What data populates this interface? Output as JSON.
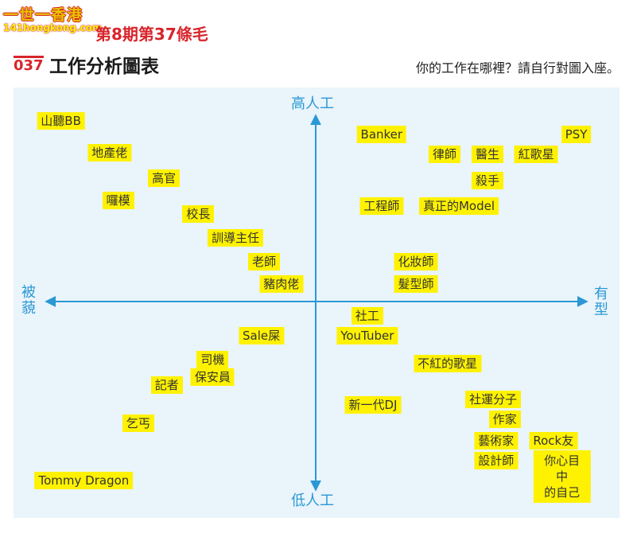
{
  "watermark": {
    "top": "一世一香港",
    "url": "141hongkong.com"
  },
  "issue": "第8期第37條毛",
  "header": {
    "number": "037",
    "title": "工作分析圖表",
    "subtitle": "你的工作在哪裡？請自行對圖入座。"
  },
  "chart_data": {
    "type": "scatter",
    "x_axis": {
      "left_label": "被\n藐",
      "right_label": "有\n型"
    },
    "y_axis": {
      "top_label": "高人工",
      "bottom_label": "低人工"
    },
    "xlim": [
      -1,
      1
    ],
    "ylim": [
      -1,
      1
    ],
    "grid": false,
    "colors": {
      "axis": "#2a98d4",
      "chip": "#fff200",
      "panel": "#eaf4fb"
    },
    "points": [
      {
        "label": "山聽BB",
        "x": -0.89,
        "y": 0.91
      },
      {
        "label": "地產佬",
        "x": -0.72,
        "y": 0.75
      },
      {
        "label": "高官",
        "x": -0.53,
        "y": 0.62
      },
      {
        "label": "囉模",
        "x": -0.69,
        "y": 0.51
      },
      {
        "label": "校長",
        "x": -0.41,
        "y": 0.44
      },
      {
        "label": "訓導主任",
        "x": -0.28,
        "y": 0.32
      },
      {
        "label": "老師",
        "x": -0.18,
        "y": 0.2
      },
      {
        "label": "豬肉佬",
        "x": -0.12,
        "y": 0.09
      },
      {
        "label": "Banker",
        "x": 0.23,
        "y": 0.84
      },
      {
        "label": "PSY",
        "x": 0.91,
        "y": 0.84
      },
      {
        "label": "律師",
        "x": 0.45,
        "y": 0.74
      },
      {
        "label": "醫生",
        "x": 0.6,
        "y": 0.74
      },
      {
        "label": "紅歌星",
        "x": 0.77,
        "y": 0.74
      },
      {
        "label": "殺手",
        "x": 0.6,
        "y": 0.61
      },
      {
        "label": "工程師",
        "x": 0.23,
        "y": 0.48
      },
      {
        "label": "真正的Model",
        "x": 0.5,
        "y": 0.48
      },
      {
        "label": "化妝師",
        "x": 0.35,
        "y": 0.2
      },
      {
        "label": "髮型師",
        "x": 0.35,
        "y": 0.09
      },
      {
        "label": "社工",
        "x": 0.18,
        "y": -0.07
      },
      {
        "label": "YouTuber",
        "x": 0.18,
        "y": -0.17
      },
      {
        "label": "Sale屎",
        "x": -0.19,
        "y": -0.17
      },
      {
        "label": "不紅的歌星",
        "x": 0.46,
        "y": -0.31
      },
      {
        "label": "司機",
        "x": -0.36,
        "y": -0.29
      },
      {
        "label": "保安員",
        "x": -0.36,
        "y": -0.38
      },
      {
        "label": "記者",
        "x": -0.52,
        "y": -0.42
      },
      {
        "label": "新一代DJ",
        "x": 0.2,
        "y": -0.52
      },
      {
        "label": "社運分子",
        "x": 0.62,
        "y": -0.49
      },
      {
        "label": "作家",
        "x": 0.66,
        "y": -0.59
      },
      {
        "label": "乞丐",
        "x": -0.62,
        "y": -0.61
      },
      {
        "label": "藝術家",
        "x": 0.63,
        "y": -0.7
      },
      {
        "label": "Rock友",
        "x": 0.83,
        "y": -0.7
      },
      {
        "label": "設計師",
        "x": 0.63,
        "y": -0.8
      },
      {
        "label": "你心目中\n的自己",
        "x": 0.86,
        "y": -0.88
      },
      {
        "label": "Tommy Dragon",
        "x": -0.81,
        "y": -0.9
      }
    ]
  }
}
